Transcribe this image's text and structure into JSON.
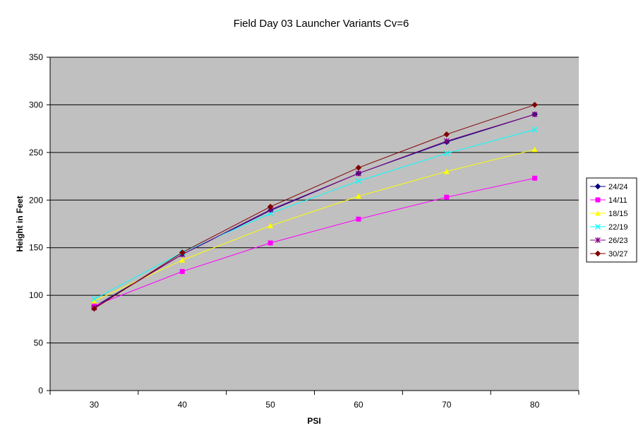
{
  "chart_data": {
    "type": "line",
    "title": "Field Day 03 Launcher Variants Cv=6",
    "xlabel": "PSI",
    "ylabel": "Height in Feet",
    "categories": [
      "30",
      "40",
      "50",
      "60",
      "70",
      "80"
    ],
    "x": [
      30,
      40,
      50,
      60,
      70,
      80
    ],
    "ylim": [
      0,
      350
    ],
    "yticks": [
      "0",
      "50",
      "100",
      "150",
      "200",
      "250",
      "300",
      "350"
    ],
    "grid": "horizontal major gridlines",
    "plot_background": "#C0C0C0",
    "legend_position": "right",
    "series": [
      {
        "name": "24/24",
        "color": "#000080",
        "marker": "diamond",
        "values": [
          88,
          143,
          189,
          228,
          261,
          290
        ]
      },
      {
        "name": "14/11",
        "color": "#FF00FF",
        "marker": "square",
        "values": [
          89,
          125,
          155,
          180,
          203,
          223
        ]
      },
      {
        "name": "18/15",
        "color": "#FFFF00",
        "marker": "triangle",
        "values": [
          94,
          137,
          173,
          204,
          230,
          253
        ]
      },
      {
        "name": "22/19",
        "color": "#00FFFF",
        "marker": "x",
        "values": [
          96,
          145,
          186,
          220,
          249,
          274
        ]
      },
      {
        "name": "26/23",
        "color": "#800080",
        "marker": "star",
        "values": [
          87,
          143,
          190,
          228,
          262,
          290
        ]
      },
      {
        "name": "30/27",
        "color": "#800000",
        "marker": "diamond",
        "values": [
          86,
          145,
          193,
          234,
          269,
          300
        ]
      }
    ]
  }
}
